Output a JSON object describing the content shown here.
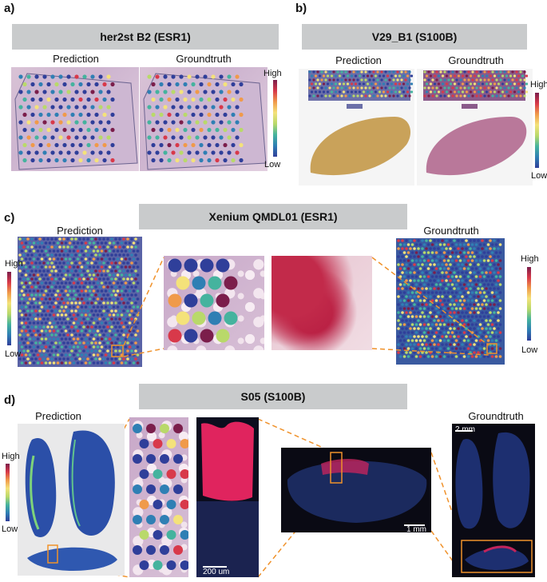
{
  "panels": {
    "a": {
      "letter": "a)",
      "title": "her2st B2 (ESR1)",
      "pred_label": "Prediction",
      "gt_label": "Groundtruth",
      "cb_high": "High",
      "cb_low": "Low"
    },
    "b": {
      "letter": "b)",
      "title": "V29_B1 (S100B)",
      "pred_label": "Prediction",
      "gt_label": "Groundtruth",
      "cb_high": "High",
      "cb_low": "Low"
    },
    "c": {
      "letter": "c)",
      "title": "Xenium QMDL01 (ESR1)",
      "pred_label": "Prediction",
      "gt_label": "Groundtruth",
      "cb_left_high": "High",
      "cb_left_low": "Low",
      "cb_right_high": "High",
      "cb_right_low": "Low"
    },
    "d": {
      "letter": "d)",
      "title": "S05 (S100B)",
      "pred_label": "Prediction",
      "gt_label": "Groundtruth",
      "cb_high": "High",
      "cb_low": "Low",
      "scale_200": "200 um",
      "scale_1mm": "1 mm",
      "scale_2mm": "2 mm"
    }
  },
  "colors": {
    "banner": "#c9cbcc",
    "zoom_line": "#f0922b",
    "colormap": [
      "#2f3f9a",
      "#2f7fb4",
      "#45b39e",
      "#b9d96a",
      "#f4e27a",
      "#f09a4a",
      "#d8394a",
      "#7b1e4b"
    ]
  }
}
